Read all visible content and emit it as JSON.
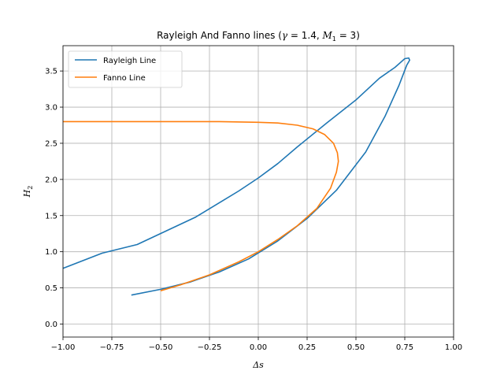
{
  "chart_data": {
    "type": "line",
    "title": "Rayleigh And Fanno lines (γ = 1.4, M₁ = 3)",
    "title_parts": {
      "prefix": "Rayleigh And Fanno lines (",
      "gamma_symbol": "γ",
      "gamma_value": " = 1.4, ",
      "mach_symbol": "M",
      "mach_sub": "1",
      "mach_value": " = 3)"
    },
    "xlabel": "Δs",
    "ylabel": "H",
    "ylabel_sub": "2",
    "xlim": [
      -1.0,
      1.0
    ],
    "ylim": [
      -0.18,
      3.85
    ],
    "x_ticks": [
      -1.0,
      -0.75,
      -0.5,
      -0.25,
      0.0,
      0.25,
      0.5,
      0.75,
      1.0
    ],
    "x_tick_labels": [
      "−1.00",
      "−0.75",
      "−0.50",
      "−0.25",
      "0.00",
      "0.25",
      "0.50",
      "0.75",
      "1.00"
    ],
    "y_ticks": [
      0.0,
      0.5,
      1.0,
      1.5,
      2.0,
      2.5,
      3.0,
      3.5
    ],
    "y_tick_labels": [
      "0.0",
      "0.5",
      "1.0",
      "1.5",
      "2.0",
      "2.5",
      "3.0",
      "3.5"
    ],
    "grid": true,
    "legend_position": "top-left",
    "series": [
      {
        "name": "Rayleigh Line",
        "color": "#1f77b4",
        "x": [
          -0.65,
          -0.5,
          -0.35,
          -0.2,
          -0.05,
          0.1,
          0.25,
          0.4,
          0.55,
          0.65,
          0.72,
          0.76,
          0.775,
          0.77,
          0.75,
          0.7,
          0.62,
          0.5,
          0.35,
          0.2,
          0.1,
          0.0,
          -0.1,
          -0.32,
          -0.62,
          -0.8,
          -1.0
        ],
        "y": [
          0.4,
          0.48,
          0.58,
          0.72,
          0.9,
          1.15,
          1.46,
          1.85,
          2.38,
          2.88,
          3.3,
          3.58,
          3.65,
          3.68,
          3.67,
          3.55,
          3.4,
          3.1,
          2.78,
          2.45,
          2.22,
          2.02,
          1.84,
          1.48,
          1.1,
          0.98,
          0.77
        ]
      },
      {
        "name": "Fanno Line",
        "color": "#ff7f0e",
        "x": [
          -1.0,
          -0.5,
          -0.2,
          0.0,
          0.1,
          0.2,
          0.28,
          0.34,
          0.385,
          0.405,
          0.41,
          0.4,
          0.37,
          0.3,
          0.2,
          0.1,
          0.0,
          -0.1,
          -0.25,
          -0.4,
          -0.5
        ],
        "y": [
          2.8,
          2.8,
          2.8,
          2.79,
          2.78,
          2.75,
          2.7,
          2.62,
          2.5,
          2.37,
          2.25,
          2.1,
          1.88,
          1.6,
          1.36,
          1.17,
          1.0,
          0.86,
          0.68,
          0.54,
          0.46
        ]
      }
    ]
  }
}
